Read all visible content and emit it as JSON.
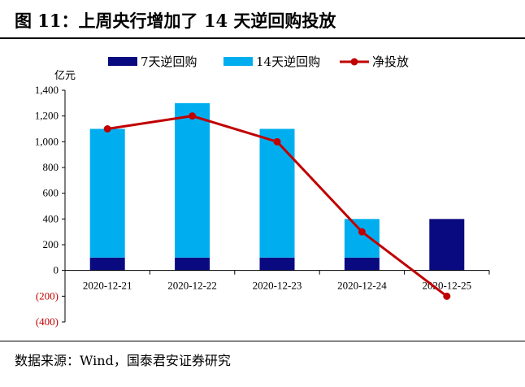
{
  "header": {
    "title": "图 11：上周央行增加了 14 天逆回购投放"
  },
  "footer": {
    "source": "数据来源：Wind，国泰君安证券研究"
  },
  "chart_data": {
    "type": "bar",
    "stacked": true,
    "unit_label": "亿元",
    "categories": [
      "2020-12-21",
      "2020-12-22",
      "2020-12-23",
      "2020-12-24",
      "2020-12-25"
    ],
    "series": [
      {
        "name": "7天逆回购",
        "kind": "bar",
        "color": "#0a0a80",
        "values": [
          100,
          100,
          100,
          100,
          400
        ]
      },
      {
        "name": "14天逆回购",
        "kind": "bar",
        "color": "#00aeef",
        "values": [
          1000,
          1200,
          1000,
          300,
          0
        ]
      },
      {
        "name": "净投放",
        "kind": "line",
        "color": "#c00000",
        "values": [
          1100,
          1200,
          1000,
          300,
          -200
        ]
      }
    ],
    "ylim": [
      -400,
      1400
    ],
    "yticks": [
      -400,
      -200,
      0,
      200,
      400,
      600,
      800,
      1000,
      1200,
      1400
    ],
    "ytick_labels": [
      "(400)",
      "(200)",
      "0",
      "200",
      "400",
      "600",
      "800",
      "1,000",
      "1,200",
      "1,400"
    ],
    "negative_tick_color": "#c00000",
    "legend_position": "top",
    "grid": false
  }
}
